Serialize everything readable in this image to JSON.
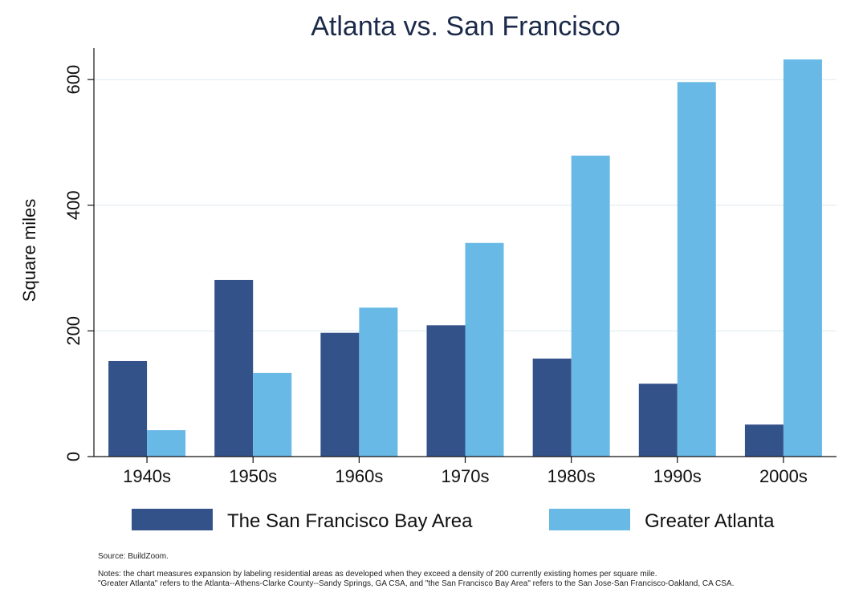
{
  "chart_data": {
    "type": "bar",
    "title": "Atlanta vs. San Francisco",
    "ylabel": "Square miles",
    "xlabel": "",
    "ylim": [
      0,
      650
    ],
    "yticks": [
      0,
      200,
      400,
      600
    ],
    "categories": [
      "1940s",
      "1950s",
      "1960s",
      "1970s",
      "1980s",
      "1990s",
      "2000s"
    ],
    "series": [
      {
        "name": "The San Francisco Bay Area",
        "color": "#34528a",
        "values": [
          152,
          281,
          197,
          209,
          156,
          116,
          51
        ]
      },
      {
        "name": "Greater Atlanta",
        "color": "#68b9e6",
        "values": [
          42,
          133,
          237,
          340,
          479,
          596,
          632
        ]
      }
    ],
    "grid": true,
    "legend_position": "bottom"
  },
  "notes": {
    "source": "Source: BuildZoom.",
    "line1": "Notes: the chart measures expansion by labeling residential areas as developed when they exceed a density of 200 currently existing homes per square mile.",
    "line2": "\"Greater Atlanta\" refers to the Atlanta--Athens-Clarke County--Sandy Springs, GA CSA, and \"the San Francisco Bay Area\" refers to the San Jose-San Francisco-Oakland, CA CSA."
  }
}
